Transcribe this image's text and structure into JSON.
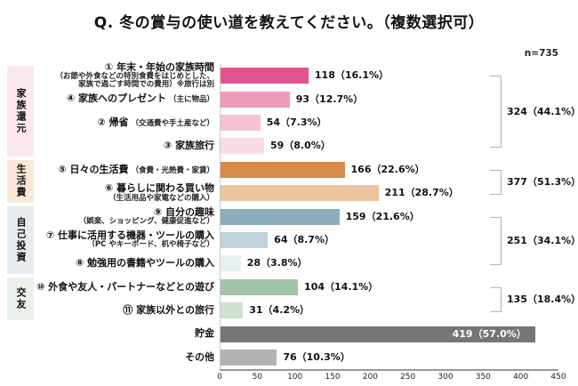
{
  "header": {
    "title": "Q. 冬の賞与の使い道を教えてください。（複数選択可）",
    "sample_size": "n=735"
  },
  "chart_data": {
    "type": "bar",
    "orientation": "horizontal",
    "title": "Q. 冬の賞与の使い道を教えてください。（複数選択可）",
    "sample_size": "n=735",
    "xlim": [
      0,
      450
    ],
    "x_ticks": [
      0,
      50,
      100,
      150,
      200,
      250,
      300,
      350,
      400,
      450
    ],
    "grid": false,
    "rows": [
      {
        "id": "family-time",
        "main": "① 年末・年始の家族時間",
        "sub": [
          "（お節や外食などの特別食費をはじめとした、",
          "家族で過ごす時間での費用）※旅行は別"
        ],
        "inline": "",
        "value": 118,
        "pct": 16.1,
        "display": "118（16.1%）",
        "color": "#e0558f",
        "label_inside": false
      },
      {
        "id": "family-present",
        "main": "④ 家族へのプレゼント",
        "sub": [],
        "inline": "（主に物品）",
        "value": 93,
        "pct": 12.7,
        "display": "93（12.7%）",
        "color": "#ef9dbc",
        "label_inside": false
      },
      {
        "id": "homecoming",
        "main": "② 帰省",
        "sub": [],
        "inline": "（交通費や手土産など）",
        "value": 54,
        "pct": 7.3,
        "display": "54（7.3%）",
        "color": "#f5c3d5",
        "label_inside": false
      },
      {
        "id": "family-trip",
        "main": "③ 家族旅行",
        "sub": [],
        "inline": "",
        "value": 59,
        "pct": 8.0,
        "display": "59（8.0%）",
        "color": "#f9dce7",
        "label_inside": false
      },
      {
        "id": "daily-expenses",
        "main": "⑤ 日々の生活費",
        "sub": [],
        "inline": "（食費・光熱費・家賃）",
        "value": 166,
        "pct": 22.6,
        "display": "166（22.6%）",
        "color": "#d88b4b",
        "label_inside": false
      },
      {
        "id": "living-shopping",
        "main": "⑥ 暮らしに関わる買い物",
        "sub": [
          "（生活用品や家電などの購入）"
        ],
        "inline": "",
        "value": 211,
        "pct": 28.7,
        "display": "211（28.7%）",
        "color": "#ebc59d",
        "label_inside": false
      },
      {
        "id": "hobby",
        "main": "⑨ 自分の趣味",
        "sub": [
          "（娯楽、ショッピング、健康促進など）"
        ],
        "inline": "",
        "value": 159,
        "pct": 21.6,
        "display": "159（21.6%）",
        "color": "#8cadbe",
        "label_inside": false
      },
      {
        "id": "work-tools",
        "main": "⑦ 仕事に活用する機器・ツールの購入",
        "sub": [
          "（PC やキーボード、机や椅子など）"
        ],
        "inline": "",
        "value": 64,
        "pct": 8.7,
        "display": "64（8.7%）",
        "color": "#c0d2db",
        "label_inside": false
      },
      {
        "id": "study-books",
        "main": "⑧ 勉強用の書籍やツールの購入",
        "sub": [],
        "inline": "",
        "value": 28,
        "pct": 3.8,
        "display": "28（3.8%）",
        "color": "#e8eff3",
        "label_inside": false
      },
      {
        "id": "social-play",
        "main": "⑩ 外食や友人・パートナーなどとの遊び",
        "sub": [],
        "inline": "",
        "value": 104,
        "pct": 14.1,
        "display": "104（14.1%）",
        "color": "#a3c4aa",
        "label_inside": false
      },
      {
        "id": "non-family-trip",
        "main": "⑪ 家族以外との旅行",
        "sub": [],
        "inline": "",
        "value": 31,
        "pct": 4.2,
        "display": "31（4.2%）",
        "color": "#d0e1d2",
        "label_inside": false
      },
      {
        "id": "savings",
        "main": "貯金",
        "sub": [],
        "inline": "",
        "value": 419,
        "pct": 57.0,
        "display": "419（57.0%）",
        "color": "#767676",
        "label_inside": true
      },
      {
        "id": "other",
        "main": "その他",
        "sub": [],
        "inline": "",
        "value": 76,
        "pct": 10.3,
        "display": "76（10.3%）",
        "color": "#b2b2b2",
        "label_inside": false
      }
    ],
    "groups": [
      {
        "id": "family",
        "label": "家族還元",
        "start_row": 0,
        "end_row": 3,
        "total_value": 324,
        "total_pct": 44.1,
        "total_display": "324（44.1%）",
        "bg_color": "#fce9f0"
      },
      {
        "id": "living",
        "label": "生活費",
        "start_row": 4,
        "end_row": 5,
        "total_value": 377,
        "total_pct": 51.3,
        "total_display": "377（51.3%）",
        "bg_color": "#f9e9d9"
      },
      {
        "id": "self-investment",
        "label": "自己投資",
        "start_row": 6,
        "end_row": 8,
        "total_value": 251,
        "total_pct": 34.1,
        "total_display": "251（34.1%）",
        "bg_color": "#e6ecef"
      },
      {
        "id": "social",
        "label": "交友",
        "start_row": 9,
        "end_row": 10,
        "total_value": 135,
        "total_pct": 18.4,
        "total_display": "135（18.4%）",
        "bg_color": "#eaf0ea"
      }
    ],
    "style": {
      "bracket_color": "#b3b3b3",
      "axis_color": "#9a9a9a",
      "inside_label_color": "#ffffff"
    }
  }
}
